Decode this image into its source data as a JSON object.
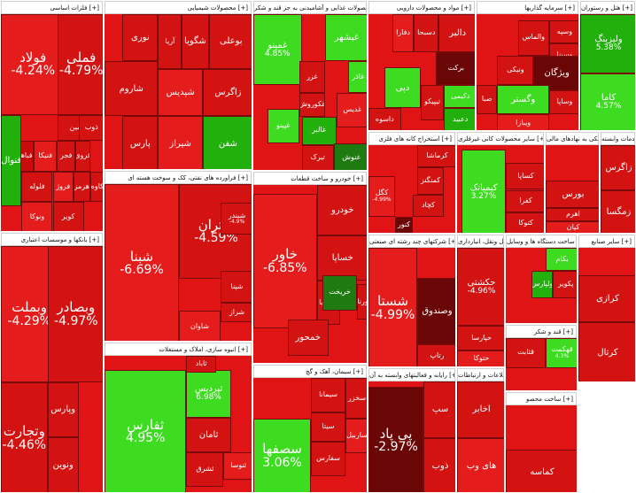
{
  "sectors": [
    {
      "id": "metals",
      "label": "فلزات اساسی [+]",
      "tiles": [
        {
          "name": "فولاد",
          "pct": "-4.24%",
          "color": "r2"
        },
        {
          "name": "فملی",
          "pct": "-4.79%",
          "color": "r1"
        },
        {
          "name": "فاسمین",
          "pct": "",
          "color": "r1"
        },
        {
          "name": "ذوب",
          "pct": "",
          "color": "r1"
        },
        {
          "name": "فباهنر",
          "pct": "",
          "color": "r3"
        },
        {
          "name": "فنیکا",
          "pct": "",
          "color": "r2"
        },
        {
          "name": "فجر",
          "pct": "",
          "color": "r1"
        },
        {
          "name": "فروی",
          "pct": "",
          "color": "r1"
        },
        {
          "name": "فنوال",
          "pct": "",
          "color": "g2"
        },
        {
          "name": "فلوله",
          "pct": "",
          "color": "r1"
        },
        {
          "name": "فروژ",
          "pct": "",
          "color": "r2"
        },
        {
          "name": "هرمز",
          "pct": "",
          "color": "r1"
        },
        {
          "name": "کاوه",
          "pct": "",
          "color": "r1"
        },
        {
          "name": "ونوکا",
          "pct": "",
          "color": "r2"
        },
        {
          "name": "کویر",
          "pct": "",
          "color": "r1"
        }
      ]
    },
    {
      "id": "chem",
      "label": "محصولات شیمیایی [+]",
      "tiles": [
        {
          "name": "بوعلی",
          "pct": "",
          "color": "r1"
        },
        {
          "name": "شگویا",
          "pct": "",
          "color": "r1"
        },
        {
          "name": "آریا",
          "pct": "",
          "color": "r1"
        },
        {
          "name": "نوری",
          "pct": "",
          "color": "r1"
        },
        {
          "name": "شاروم",
          "pct": "",
          "color": "r1"
        },
        {
          "name": "شپدیس",
          "pct": "",
          "color": "r2"
        },
        {
          "name": "زاگرس",
          "pct": "",
          "color": "r1"
        },
        {
          "name": "شیراز",
          "pct": "",
          "color": "r2"
        },
        {
          "name": "پارس",
          "pct": "",
          "color": "r1"
        },
        {
          "name": "شفن",
          "pct": "",
          "color": "g2"
        }
      ]
    },
    {
      "id": "food",
      "label": "محصولات غذایی و آشامیدنی به جز قند و شکر [+]",
      "tiles": [
        {
          "name": "غمینو",
          "pct": "4.85%",
          "color": "g1"
        },
        {
          "name": "غبشهر",
          "pct": "",
          "color": "g1"
        },
        {
          "name": "غاذر",
          "pct": "",
          "color": "g1"
        },
        {
          "name": "غزر",
          "pct": "",
          "color": "r1"
        },
        {
          "name": "غکوروش",
          "pct": "",
          "color": "r1"
        },
        {
          "name": "غدیس",
          "pct": "",
          "color": "r2"
        },
        {
          "name": "غالبر",
          "pct": "",
          "color": "g2"
        },
        {
          "name": "غپینو",
          "pct": "",
          "color": "g1"
        },
        {
          "name": "تبرک",
          "pct": "",
          "color": "r1"
        },
        {
          "name": "غنوش",
          "pct": "",
          "color": "dg"
        }
      ]
    },
    {
      "id": "pharma",
      "label": "مواد و محصولات دارویی [+]",
      "tiles": [
        {
          "name": "دالبر",
          "pct": "",
          "color": "r1"
        },
        {
          "name": "دسبحا",
          "pct": "",
          "color": "r1"
        },
        {
          "name": "دفارا",
          "pct": "",
          "color": "r2"
        },
        {
          "name": "برکت",
          "pct": "",
          "color": "dk"
        },
        {
          "name": "دپی",
          "pct": "",
          "color": "g1"
        },
        {
          "name": "تیپیکو",
          "pct": "",
          "color": "r1"
        },
        {
          "name": "دکیمی",
          "pct": "",
          "color": "g1"
        },
        {
          "name": "دعبید",
          "pct": "",
          "color": "g2"
        },
        {
          "name": "داسوه",
          "pct": "",
          "color": "r1"
        }
      ]
    },
    {
      "id": "invest",
      "label": "سرمایه گذاریها [+]",
      "tiles": [
        {
          "name": "والماس",
          "pct": "",
          "color": "r1"
        },
        {
          "name": "وسپه",
          "pct": "",
          "color": "r1"
        },
        {
          "name": "وسینا",
          "pct": "",
          "color": "r1"
        },
        {
          "name": "ونیکی",
          "pct": "",
          "color": "r1"
        },
        {
          "name": "ویژگان",
          "pct": "",
          "color": "dk"
        },
        {
          "name": "وگستر",
          "pct": "",
          "color": "g1"
        },
        {
          "name": "صبا",
          "pct": "",
          "color": "r1"
        },
        {
          "name": "وساپا",
          "pct": "",
          "color": "r1"
        },
        {
          "name": "ویبازا",
          "pct": "",
          "color": "r2"
        }
      ]
    },
    {
      "id": "banks",
      "label": "بانکها و موسسات اعتباری [+]",
      "tiles": [
        {
          "name": "وبملت",
          "pct": "-4.29%",
          "color": "r2"
        },
        {
          "name": "وبصادر",
          "pct": "-4.97%",
          "color": "r1"
        },
        {
          "name": "وتجارت",
          "pct": "-4.46%",
          "color": "r1"
        },
        {
          "name": "وپارس",
          "pct": "",
          "color": "r1"
        },
        {
          "name": "ونوین",
          "pct": "",
          "color": "r1"
        }
      ]
    },
    {
      "id": "oil",
      "label": "فراورده های نفتی، کک و سوخت هسته ای [+]",
      "tiles": [
        {
          "name": "شبنا",
          "pct": "-6.69%",
          "color": "r2"
        },
        {
          "name": "شتران",
          "pct": "-4.59%",
          "color": "r1"
        },
        {
          "name": "شبندر",
          "pct": "-4.9%",
          "color": "r1"
        },
        {
          "name": "شپنا",
          "pct": "",
          "color": "r1"
        },
        {
          "name": "شراز",
          "pct": "",
          "color": "r1"
        },
        {
          "name": "شاوان",
          "pct": "",
          "color": "r2"
        }
      ]
    },
    {
      "id": "auto",
      "label": "خودرو و ساخت قطعات [+]",
      "tiles": [
        {
          "name": "خاور",
          "pct": "-6.85%",
          "color": "r2"
        },
        {
          "name": "خودرو",
          "pct": "",
          "color": "r1"
        },
        {
          "name": "خساپا",
          "pct": "",
          "color": "r1"
        },
        {
          "name": "خزامیا",
          "pct": "",
          "color": "r1"
        },
        {
          "name": "خریخت",
          "pct": "",
          "color": "dg"
        },
        {
          "name": "ورنا",
          "pct": "",
          "color": "r1"
        },
        {
          "name": "خمحور",
          "pct": "",
          "color": "r1"
        }
      ]
    },
    {
      "id": "realestate",
      "label": "انبوه سازی، املاک و مستغلات [+]",
      "tiles": [
        {
          "name": "ثفارس",
          "pct": "4.95%",
          "color": "g1"
        },
        {
          "name": "ثپردیس",
          "pct": "6.98%",
          "color": "g1"
        },
        {
          "name": "ثاباد",
          "pct": "",
          "color": "r1"
        },
        {
          "name": "ثامان",
          "pct": "",
          "color": "r1"
        },
        {
          "name": "ثشرق",
          "pct": "",
          "color": "r1"
        },
        {
          "name": "ثنوسا",
          "pct": "",
          "color": "r2"
        }
      ]
    },
    {
      "id": "cement",
      "label": "سیمان، آهک و گچ [+]",
      "tiles": [
        {
          "name": "سیمانا",
          "pct": "",
          "color": "r1"
        },
        {
          "name": "سیتا",
          "pct": "",
          "color": "r1"
        },
        {
          "name": "سخزر",
          "pct": "",
          "color": "r1"
        },
        {
          "name": "سصفها",
          "pct": "3.06%",
          "color": "g1"
        },
        {
          "name": "سفارس",
          "pct": "",
          "color": "r1"
        },
        {
          "name": "ساربیل",
          "pct": "",
          "color": "r2"
        }
      ]
    },
    {
      "id": "mining",
      "label": "استخراج کانه های فلزی [+]",
      "tiles": [
        {
          "name": "کگل",
          "pct": "-4.99%",
          "color": "r2"
        },
        {
          "name": "کچاد",
          "pct": "",
          "color": "r1"
        },
        {
          "name": "کنور",
          "pct": "",
          "color": "dk"
        },
        {
          "name": "کمنگنز",
          "pct": "",
          "color": "r1"
        },
        {
          "name": "کرماشا",
          "pct": "",
          "color": "r1"
        }
      ]
    },
    {
      "id": "nonmetal",
      "label": "سایر محصولات کانی غیرفلزی [+]",
      "tiles": [
        {
          "name": "کیمیاتک",
          "pct": "3.27%",
          "color": "g1"
        },
        {
          "name": "کساپا",
          "pct": "",
          "color": "r1"
        },
        {
          "name": "کفرا",
          "pct": "",
          "color": "r1"
        },
        {
          "name": "کتوکا",
          "pct": "",
          "color": "r1"
        }
      ]
    },
    {
      "id": "multi",
      "label": "شرکتهای چند رشته ای صنعتی [+]",
      "tiles": [
        {
          "name": "شستا",
          "pct": "-4.99%",
          "color": "r2"
        },
        {
          "name": "وصندوق",
          "pct": "",
          "color": "dk"
        },
        {
          "name": "رتاپ",
          "pct": "",
          "color": "r1"
        }
      ]
    },
    {
      "id": "transport",
      "label": "حمل ونقل، انبارداری [+]",
      "tiles": [
        {
          "name": "حکشتی",
          "pct": "-4.96%",
          "color": "r1"
        },
        {
          "name": "حپارسا",
          "pct": "",
          "color": "r1"
        },
        {
          "name": "حتوکا",
          "pct": "",
          "color": "r2"
        }
      ]
    },
    {
      "id": "telecom",
      "label": "رایانه و فعالیتهای وابسته به آن [+]",
      "tiles": [
        {
          "name": "پی پاد",
          "pct": "-2.97%",
          "color": "dk"
        },
        {
          "name": "سپ",
          "pct": "",
          "color": "r1"
        },
        {
          "name": "ذوب",
          "pct": "",
          "color": "r1"
        }
      ]
    },
    {
      "id": "utilities",
      "label": "فعالیتهای کمکی به نهادهای مالی [+]",
      "tiles": [
        {
          "name": "بورس",
          "pct": "",
          "color": "r1"
        },
        {
          "name": "اهرم",
          "pct": "",
          "color": "r1"
        },
        {
          "name": "کیان",
          "pct": "",
          "color": "r2"
        }
      ]
    },
    {
      "id": "agri",
      "label": "زراعت و خدمات وابسته [+]",
      "tiles": [
        {
          "name": "زاگرس",
          "pct": "",
          "color": "r1"
        },
        {
          "name": "زمگسا",
          "pct": "",
          "color": "r1"
        }
      ]
    },
    {
      "id": "hotel",
      "label": "هتل و رستوران [+]",
      "tiles": [
        {
          "name": "ولیزینگ",
          "pct": "5.38%",
          "color": "g2"
        },
        {
          "name": "کاما",
          "pct": "4.57%",
          "color": "g1"
        }
      ]
    },
    {
      "id": "electric",
      "label": "ساخت دستگاه ها و وسایل [+]",
      "tiles": [
        {
          "name": "بکام",
          "pct": "",
          "color": "g1"
        },
        {
          "name": "ولپارس",
          "pct": "",
          "color": "g2"
        },
        {
          "name": "پکویر",
          "pct": "",
          "color": "r1"
        }
      ]
    },
    {
      "id": "sugar",
      "label": "قند و شکر [+]",
      "tiles": [
        {
          "name": "قثابت",
          "pct": "",
          "color": "r1"
        },
        {
          "name": "قهکمت",
          "pct": "4.3%",
          "color": "g1"
        }
      ]
    },
    {
      "id": "misc",
      "label": "اطلاعات و ارتباطات [+]",
      "tiles": [
        {
          "name": "اخابر",
          "pct": "",
          "color": "r1"
        },
        {
          "name": "های وب",
          "pct": "",
          "color": "r2"
        }
      ]
    },
    {
      "id": "misc2",
      "label": "ساخت محصو [+]",
      "tiles": [
        {
          "name": "کماسه",
          "pct": "",
          "color": "r1"
        }
      ]
    },
    {
      "id": "misc3",
      "label": "سایر صنایع [+]",
      "tiles": [
        {
          "name": "کرازی",
          "pct": "",
          "color": "r1"
        },
        {
          "name": "کرتال",
          "pct": "",
          "color": "r1"
        }
      ]
    }
  ]
}
